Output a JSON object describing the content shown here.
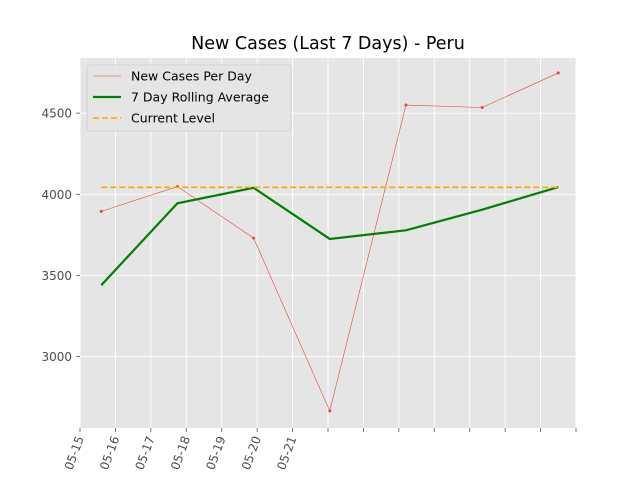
{
  "chart_data": {
    "type": "line",
    "title": "New Cases (Last 7 Days) - Peru",
    "xlabel": "",
    "ylabel": "",
    "x_tick_labels": [
      "05-15",
      "05-16",
      "05-17",
      "05-18",
      "05-19",
      "05-20",
      "05-21",
      "",
      "",
      "",
      "",
      "",
      "",
      "",
      ""
    ],
    "y_ticks": [
      3000,
      3500,
      4000,
      4500
    ],
    "ylim": [
      2560,
      4840
    ],
    "x_points": [
      0.6,
      2.75,
      4.9,
      7.05,
      9.2,
      11.35,
      13.5
    ],
    "x_tick_count": 15,
    "series": [
      {
        "name": "New Cases Per Day",
        "type": "line-with-markers",
        "color": "#e24a33",
        "values": [
          3895,
          4048,
          3730,
          2665,
          4550,
          4535,
          4748
        ]
      },
      {
        "name": "7 Day Rolling Average",
        "type": "line",
        "color": "#008000",
        "values": [
          3440,
          3945,
          4040,
          3725,
          3778,
          3905,
          4045
        ]
      },
      {
        "name": "Current Level",
        "type": "dashed-line",
        "color": "#ffa500",
        "values": [
          4043,
          4043,
          4043,
          4043,
          4043,
          4043,
          4043
        ]
      }
    ],
    "grid": true,
    "legend_position": "top-left",
    "background_color": "#e5e5e5",
    "grid_color": "#ffffff"
  }
}
